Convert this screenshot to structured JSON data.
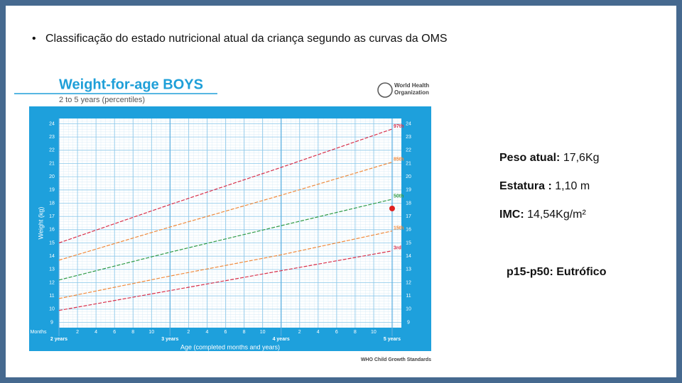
{
  "slide": {
    "bullet": "Classificação do estado nutricional atual da criança segundo as curvas da OMS",
    "info": [
      {
        "label": "Peso atual:",
        "value": "17,6Kg"
      },
      {
        "label": "Estatura :",
        "value": "1,10 m"
      },
      {
        "label": "IMC:",
        "value": "14,54Kg/m²"
      }
    ],
    "classification": "p15-p50: Eutrófico"
  },
  "chart_data": {
    "type": "line",
    "title": "Weight-for-age BOYS",
    "subtitle": "2 to 5 years (percentiles)",
    "logo": [
      "World Health",
      "Organization"
    ],
    "y_label": "Weight (kg)",
    "x_label": "Age (completed months and years)",
    "months_label": "Months",
    "source": "WHO Child Growth Standards",
    "x": [
      24,
      36,
      48,
      60
    ],
    "xlim": [
      24,
      61
    ],
    "ylim": [
      8.6,
      24.4
    ],
    "yticks": [
      9,
      10,
      11,
      12,
      13,
      14,
      15,
      16,
      17,
      18,
      19,
      20,
      21,
      22,
      23,
      24
    ],
    "xticks": [
      {
        "value": 26,
        "label": "2"
      },
      {
        "value": 28,
        "label": "4"
      },
      {
        "value": 30,
        "label": "6"
      },
      {
        "value": 32,
        "label": "8"
      },
      {
        "value": 34,
        "label": "10"
      },
      {
        "value": 38,
        "label": "2"
      },
      {
        "value": 40,
        "label": "4"
      },
      {
        "value": 42,
        "label": "6"
      },
      {
        "value": 44,
        "label": "8"
      },
      {
        "value": 46,
        "label": "10"
      },
      {
        "value": 50,
        "label": "2"
      },
      {
        "value": 52,
        "label": "4"
      },
      {
        "value": 54,
        "label": "6"
      },
      {
        "value": 56,
        "label": "8"
      },
      {
        "value": 58,
        "label": "10"
      }
    ],
    "year_ticks": [
      {
        "value": 24,
        "label": "2 years"
      },
      {
        "value": 36,
        "label": "3 years"
      },
      {
        "value": 48,
        "label": "4 years"
      },
      {
        "value": 60,
        "label": "5 years"
      }
    ],
    "series": [
      {
        "name": "97th",
        "color": "#d9304a",
        "values": [
          15.0,
          17.9,
          20.7,
          23.6
        ]
      },
      {
        "name": "85th",
        "color": "#f08a3c",
        "values": [
          13.7,
          16.2,
          18.6,
          21.1
        ]
      },
      {
        "name": "50th",
        "color": "#2e9a45",
        "values": [
          12.2,
          14.3,
          16.3,
          18.3
        ]
      },
      {
        "name": "15th",
        "color": "#f08a3c",
        "values": [
          10.8,
          12.5,
          14.1,
          15.9
        ]
      },
      {
        "name": "3rd",
        "color": "#d9304a",
        "values": [
          9.9,
          11.4,
          12.9,
          14.4
        ]
      }
    ],
    "point": {
      "x": 60,
      "y": 17.6,
      "color": "#e02020"
    }
  }
}
